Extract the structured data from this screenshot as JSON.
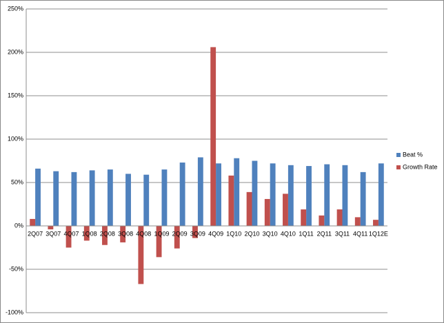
{
  "chart_data": {
    "type": "bar",
    "categories": [
      "2Q07",
      "3Q07",
      "4Q07",
      "1Q08",
      "2Q08",
      "3Q08",
      "4Q08",
      "1Q09",
      "2Q09",
      "3Q09",
      "4Q09",
      "1Q10",
      "2Q10",
      "3Q10",
      "4Q10",
      "1Q11",
      "2Q11",
      "3Q11",
      "4Q11",
      "1Q12E"
    ],
    "series": [
      {
        "name": "Beat %",
        "color": "#4f81bd",
        "values": [
          66,
          63,
          62,
          64,
          65,
          60,
          59,
          65,
          73,
          79,
          72,
          78,
          75,
          72,
          70,
          69,
          71,
          70,
          62,
          72
        ]
      },
      {
        "name": "Growth Rate",
        "color": "#c0504d",
        "values": [
          8,
          -4,
          -25,
          -17,
          -22,
          -19,
          -67,
          -36,
          -26,
          -14,
          206,
          58,
          39,
          31,
          37,
          19,
          12,
          19,
          10,
          7
        ]
      }
    ],
    "ylim": [
      -100,
      250
    ],
    "yticks": [
      {
        "value": -100,
        "label": "-100%"
      },
      {
        "value": -50,
        "label": "-50%"
      },
      {
        "value": 0,
        "label": "0%"
      },
      {
        "value": 50,
        "label": "50%"
      },
      {
        "value": 100,
        "label": "100%"
      },
      {
        "value": 150,
        "label": "150%"
      },
      {
        "value": 200,
        "label": "200%"
      },
      {
        "value": 250,
        "label": "250%"
      }
    ],
    "grid": true,
    "legend": "right"
  }
}
